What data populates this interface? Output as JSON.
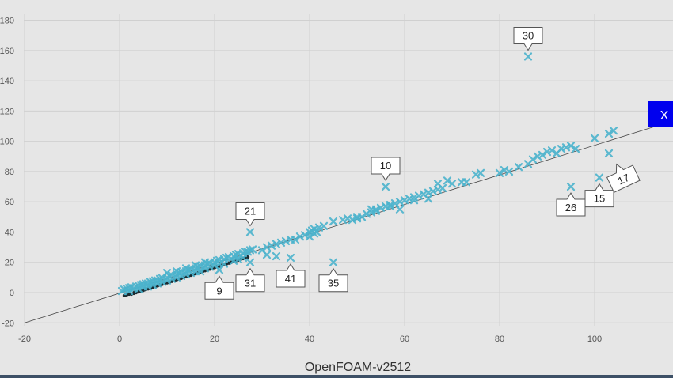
{
  "chart_data": {
    "type": "scatter",
    "xlabel": "OpenFOAM-v2512",
    "ylabel": "",
    "title": "",
    "xlim": [
      -20,
      115
    ],
    "ylim": [
      -20,
      185
    ],
    "xticks": [
      "-20",
      "0",
      "20",
      "40",
      "60",
      "80",
      "100"
    ],
    "yticks": [
      "-20",
      "0",
      "20",
      "40",
      "60",
      "80",
      "100",
      "120",
      "140",
      "160",
      "180"
    ],
    "grid": true,
    "reference_line": {
      "from": [
        -20,
        -20
      ],
      "to": [
        115,
        112
      ]
    },
    "marker": "x",
    "marker_color": "#4bb3cc",
    "close_button_label": "X",
    "close_button_color": "#0000ee",
    "points": [
      [
        0.5,
        1
      ],
      [
        1,
        2
      ],
      [
        1.5,
        2.5
      ],
      [
        2,
        3
      ],
      [
        2.5,
        3.5
      ],
      [
        3,
        3
      ],
      [
        3.5,
        4
      ],
      [
        4,
        4.5
      ],
      [
        4.5,
        5
      ],
      [
        5,
        5.5
      ],
      [
        5.5,
        6
      ],
      [
        6,
        6
      ],
      [
        6.5,
        7
      ],
      [
        7,
        7.5
      ],
      [
        7.5,
        8
      ],
      [
        8,
        8
      ],
      [
        8.5,
        9
      ],
      [
        9,
        9.5
      ],
      [
        10,
        10
      ],
      [
        10.5,
        11
      ],
      [
        11,
        11.5
      ],
      [
        12,
        12
      ],
      [
        12.5,
        13
      ],
      [
        13,
        13.5
      ],
      [
        14,
        14
      ],
      [
        14.5,
        15
      ],
      [
        15,
        15.5
      ],
      [
        16,
        16
      ],
      [
        16.5,
        17
      ],
      [
        17,
        17.5
      ],
      [
        18,
        18
      ],
      [
        18.5,
        19
      ],
      [
        19,
        19.5
      ],
      [
        20,
        20
      ],
      [
        20.5,
        21
      ],
      [
        21,
        21.5
      ],
      [
        22,
        22
      ],
      [
        22.5,
        23
      ],
      [
        23,
        23.5
      ],
      [
        24,
        24
      ],
      [
        24.5,
        25
      ],
      [
        25,
        25.5
      ],
      [
        26,
        26
      ],
      [
        26.5,
        27
      ],
      [
        27,
        27
      ],
      [
        27.5,
        28
      ],
      [
        28,
        28.5
      ],
      [
        2,
        1
      ],
      [
        4,
        2.5
      ],
      [
        6,
        4
      ],
      [
        8,
        6
      ],
      [
        10,
        8
      ],
      [
        12,
        10
      ],
      [
        14,
        12
      ],
      [
        16,
        14
      ],
      [
        18,
        16
      ],
      [
        20,
        18
      ],
      [
        22,
        19
      ],
      [
        24,
        21
      ],
      [
        26,
        23
      ],
      [
        10,
        13
      ],
      [
        12,
        14
      ],
      [
        14,
        16
      ],
      [
        16,
        18
      ],
      [
        18,
        20
      ],
      [
        30,
        28
      ],
      [
        31,
        30
      ],
      [
        32,
        31
      ],
      [
        33,
        32
      ],
      [
        34,
        33
      ],
      [
        35,
        34
      ],
      [
        36,
        35
      ],
      [
        37,
        35
      ],
      [
        38,
        37
      ],
      [
        39,
        38
      ],
      [
        40,
        40
      ],
      [
        40.5,
        41
      ],
      [
        41,
        42
      ],
      [
        41.5,
        40
      ],
      [
        42,
        43
      ],
      [
        43,
        44
      ],
      [
        40,
        37
      ],
      [
        41,
        39
      ],
      [
        31,
        25
      ],
      [
        33,
        24
      ],
      [
        47,
        48
      ],
      [
        48,
        49
      ],
      [
        49,
        48
      ],
      [
        50,
        49
      ],
      [
        51,
        50
      ],
      [
        52,
        52
      ],
      [
        53,
        53
      ],
      [
        54,
        55
      ],
      [
        55,
        56
      ],
      [
        56,
        57
      ],
      [
        57,
        58
      ],
      [
        58,
        59
      ],
      [
        59,
        60
      ],
      [
        60,
        61
      ],
      [
        61,
        62
      ],
      [
        62,
        63
      ],
      [
        63,
        64
      ],
      [
        64,
        65
      ],
      [
        65,
        66
      ],
      [
        66,
        67
      ],
      [
        67,
        68
      ],
      [
        68,
        69
      ],
      [
        70,
        72
      ],
      [
        72,
        73
      ],
      [
        75,
        78
      ],
      [
        76,
        79
      ],
      [
        80,
        79
      ],
      [
        81,
        81
      ],
      [
        82,
        80
      ],
      [
        84,
        83
      ],
      [
        86,
        85
      ],
      [
        87,
        88
      ],
      [
        88,
        90
      ],
      [
        89,
        91
      ],
      [
        90,
        93
      ],
      [
        91,
        94
      ],
      [
        92,
        92
      ],
      [
        93,
        95
      ],
      [
        94,
        96
      ],
      [
        95,
        97
      ],
      [
        96,
        95
      ],
      [
        100,
        102
      ],
      [
        103,
        105
      ],
      [
        104,
        107
      ],
      [
        53,
        55
      ],
      [
        59,
        55
      ],
      [
        62,
        61
      ],
      [
        65,
        62
      ],
      [
        67,
        72
      ],
      [
        69,
        74
      ],
      [
        45,
        47
      ],
      [
        50,
        50
      ],
      [
        54,
        54
      ],
      [
        57,
        57
      ],
      [
        73,
        73
      ],
      [
        5,
        4
      ],
      [
        7,
        5
      ],
      [
        9,
        7
      ],
      [
        11,
        9
      ],
      [
        13,
        11
      ],
      [
        15,
        13
      ],
      [
        17,
        14
      ],
      [
        19,
        17
      ],
      [
        21,
        19
      ],
      [
        25,
        22
      ],
      [
        27.5,
        40
      ],
      [
        27.5,
        20
      ],
      [
        21,
        15
      ],
      [
        36,
        23
      ],
      [
        45,
        20
      ],
      [
        56,
        70
      ],
      [
        86,
        156
      ],
      [
        95,
        70
      ],
      [
        101,
        76
      ],
      [
        103,
        92
      ]
    ],
    "dark_points": [
      [
        1,
        -2
      ],
      [
        1.5,
        -1.5
      ],
      [
        2,
        -1
      ],
      [
        2.5,
        -1
      ],
      [
        3,
        -0.5
      ],
      [
        3.5,
        0
      ],
      [
        4,
        0.5
      ],
      [
        4.5,
        1
      ],
      [
        5,
        1.5
      ],
      [
        5.5,
        2
      ],
      [
        6,
        2.5
      ],
      [
        6.5,
        3
      ],
      [
        7,
        3.5
      ],
      [
        7.5,
        4
      ],
      [
        8,
        4.5
      ],
      [
        8.5,
        5
      ],
      [
        9,
        5.5
      ],
      [
        9.5,
        6
      ],
      [
        10,
        6.5
      ],
      [
        10.5,
        7
      ],
      [
        11,
        7.5
      ],
      [
        11.5,
        8
      ],
      [
        12,
        8.5
      ],
      [
        12.5,
        9
      ],
      [
        13,
        9.5
      ],
      [
        13.5,
        10
      ],
      [
        14,
        10.5
      ],
      [
        14.5,
        11
      ],
      [
        15,
        11.5
      ],
      [
        15.5,
        12
      ],
      [
        16,
        12.5
      ],
      [
        16.5,
        13
      ],
      [
        17,
        13.5
      ],
      [
        17.5,
        14
      ],
      [
        18,
        14.5
      ],
      [
        18.5,
        15
      ],
      [
        19,
        15.5
      ],
      [
        19.5,
        16
      ],
      [
        20,
        16.5
      ],
      [
        20.5,
        17
      ],
      [
        21,
        17.5
      ],
      [
        21.5,
        18
      ],
      [
        22,
        18.5
      ],
      [
        22.5,
        19
      ],
      [
        23,
        19.5
      ],
      [
        23.5,
        20
      ],
      [
        24,
        20.5
      ],
      [
        24.5,
        21
      ],
      [
        25,
        21.5
      ],
      [
        25.5,
        22
      ],
      [
        26,
        22.5
      ],
      [
        26.5,
        23
      ],
      [
        27,
        23.5
      ],
      [
        1.2,
        -1
      ],
      [
        2.2,
        -0.5
      ],
      [
        3.2,
        0.5
      ],
      [
        4.2,
        1.5
      ],
      [
        5.2,
        2.5
      ],
      [
        6.2,
        3.5
      ],
      [
        7.2,
        4.5
      ]
    ],
    "callouts": [
      {
        "label": "30",
        "point": [
          86,
          156
        ],
        "dir": "up"
      },
      {
        "label": "21",
        "point": [
          27.5,
          40
        ],
        "dir": "up"
      },
      {
        "label": "10",
        "point": [
          56,
          70
        ],
        "dir": "up"
      },
      {
        "label": "9",
        "point": [
          21,
          15
        ],
        "dir": "down"
      },
      {
        "label": "31",
        "point": [
          27.5,
          20
        ],
        "dir": "down"
      },
      {
        "label": "41",
        "point": [
          36,
          23
        ],
        "dir": "down"
      },
      {
        "label": "35",
        "point": [
          45,
          20
        ],
        "dir": "down"
      },
      {
        "label": "26",
        "point": [
          95,
          70
        ],
        "dir": "down"
      },
      {
        "label": "15",
        "point": [
          101,
          76
        ],
        "dir": "down"
      },
      {
        "label": "17",
        "point": [
          103,
          92
        ],
        "dir": "diag"
      }
    ]
  }
}
